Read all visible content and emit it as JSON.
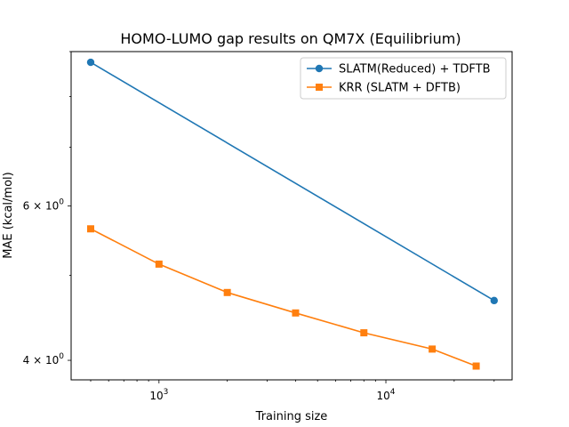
{
  "chart_data": {
    "type": "line",
    "title": "HOMO-LUMO gap results on QM7X (Equilibrium)",
    "xlabel": "Training size",
    "ylabel": "MAE (kcal/mol)",
    "xscale": "log",
    "yscale": "log",
    "xlim": [
      410,
      36000
    ],
    "ylim": [
      3.8,
      9.0
    ],
    "x_ticks": [
      {
        "value": 1000,
        "label": "10",
        "exp": "3"
      },
      {
        "value": 10000,
        "label": "10",
        "exp": "4"
      }
    ],
    "y_ticks": [
      {
        "value": 4,
        "label": "4 × 10",
        "exp": "0"
      },
      {
        "value": 6,
        "label": "6 × 10",
        "exp": "0"
      }
    ],
    "grid": false,
    "legend_position": "top-right",
    "series": [
      {
        "name": "SLATM(Reduced) + TDFTB",
        "color": "#1f77b4",
        "marker": "circle",
        "x": [
          500,
          30000
        ],
        "y": [
          8.75,
          4.68
        ]
      },
      {
        "name": "KRR (SLATM + DFTB)",
        "color": "#ff7f0e",
        "marker": "square",
        "x": [
          500,
          1000,
          2000,
          4000,
          8000,
          16000,
          25000
        ],
        "y": [
          5.65,
          5.15,
          4.78,
          4.53,
          4.3,
          4.12,
          3.94
        ]
      }
    ]
  }
}
